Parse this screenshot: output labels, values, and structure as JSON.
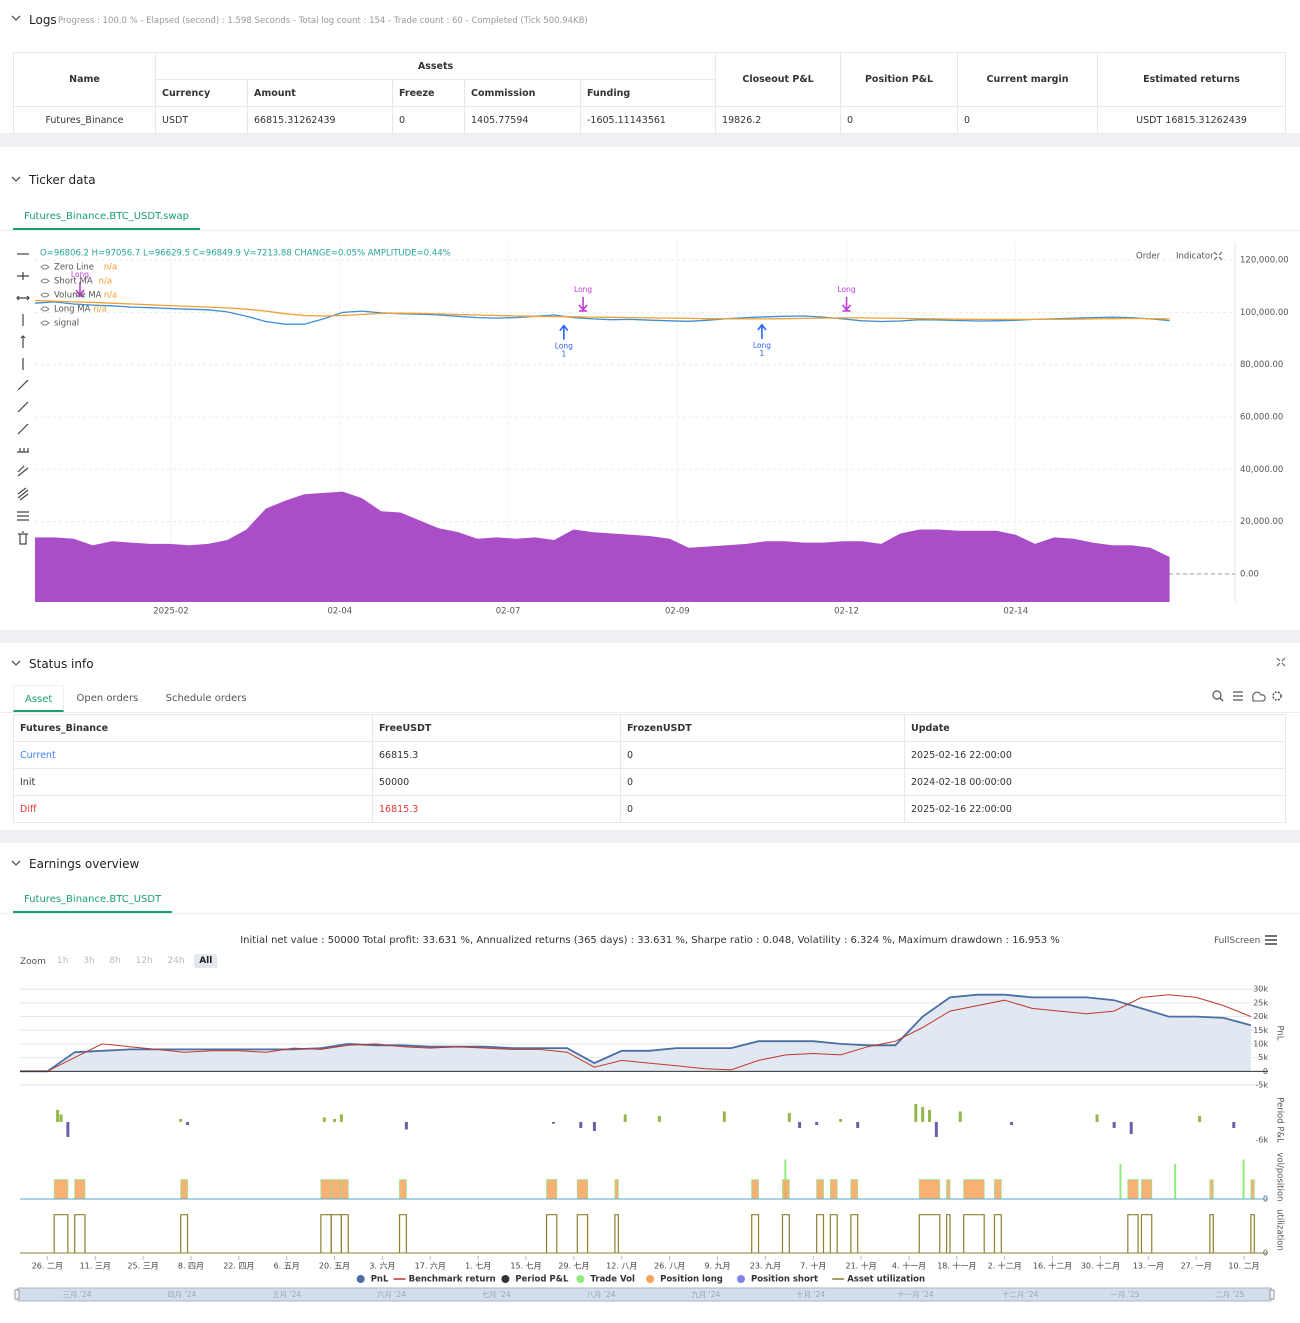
{
  "logs": {
    "title": "Logs",
    "progress": "Progress : 100.0 % - Elapsed (second) : 1.598 Seconds - Total log count : 154 - Trade count : 60 - Completed (Tick 500.94KB)",
    "table": {
      "headers": [
        "Name",
        "Assets",
        "Closeout P&L",
        "Position P&L",
        "Current margin",
        "Estimated returns"
      ],
      "subheaders": [
        "Currency",
        "Amount",
        "Freeze",
        "Commission",
        "Funding"
      ],
      "rows": [
        [
          "Futures_Binance",
          "USDT",
          66815.31262439,
          0,
          1405.77594,
          -1605.11143561,
          19826.2,
          0,
          0,
          "USDT 16815.31262439"
        ]
      ]
    }
  },
  "ticker": {
    "title": "Ticker data",
    "tab": "Futures_Binance.BTC_USDT.swap",
    "ohlc": "O=96806.2 H=97056.7 L=96629.5 C=96849.9 V=7213.88 CHANGE=0.05% AMPLITUDE=0.44%",
    "buttons": [
      "Order",
      "Indicator"
    ]
  },
  "status": {
    "title": "Status info",
    "tabs": [
      "Asset",
      "Open orders",
      "Schedule orders"
    ],
    "table": {
      "headers": [
        "Futures_Binance",
        "FreeUSDT",
        "FrozenUSDT",
        "Update"
      ],
      "rows": [
        [
          "Current",
          66815.3,
          0,
          "2025-02-16 22:00:00"
        ],
        [
          "Init",
          50000,
          0,
          "2024-02-18 00:00:00"
        ],
        [
          "Diff",
          16815.3,
          0,
          "2025-02-16 22:00:00"
        ]
      ]
    }
  },
  "earnings": {
    "title": "Earnings overview",
    "tab": "Futures_Binance.BTC_USDT",
    "zoom_label": "Zoom",
    "zoom": [
      "1h",
      "3h",
      "8h",
      "12h",
      "24h",
      "All"
    ],
    "fullscreen": "FullScreen",
    "navigator": [
      "三月 '24",
      "四月 '24",
      "五月 '24",
      "六月 '24",
      "七月 '24",
      "八月 '24",
      "九月 '24",
      "十月 '24",
      "十一月 '24",
      "十二月 '24",
      "一月 '25",
      "二月 '25"
    ]
  },
  "chart_data": [
    {
      "type": "line",
      "xlim": [
        0,
        62.4
      ],
      "xticks": [
        {
          "value": 7.07,
          "label": "2025-02"
        },
        {
          "value": 15.85,
          "label": "02-04"
        },
        {
          "value": 24.6,
          "label": "02-07"
        },
        {
          "value": 33.4,
          "label": "02-09"
        },
        {
          "value": 42.2,
          "label": "02-12"
        },
        {
          "value": 51,
          "label": "02-14"
        }
      ],
      "ylim": [
        -10700,
        126900
      ],
      "yticks": [
        {
          "value": 0,
          "label": "0.00"
        },
        {
          "value": 20000,
          "label": "20,000.00"
        },
        {
          "value": 40000,
          "label": "40,000.00"
        },
        {
          "value": 60000,
          "label": "60,000.00"
        },
        {
          "value": 80000,
          "label": "80,000.00"
        },
        {
          "value": 100000,
          "label": "100,000.00"
        },
        {
          "value": 120000,
          "label": "120,000.00"
        }
      ],
      "grid": true,
      "series": [
        {
          "name": "Zero Line",
          "status": "n/a",
          "color": "#9e9e9e",
          "level": 0
        },
        {
          "name": "Short MA",
          "status": "n/a",
          "color": "#3d8fd6",
          "values": [
            103500,
            104000,
            103200,
            102800,
            102500,
            102000,
            101800,
            101500,
            101200,
            101000,
            100200,
            98500,
            96500,
            95500,
            95500,
            97500,
            100000,
            100500,
            99800,
            99500,
            99300,
            99000,
            98500,
            98000,
            97800,
            98000,
            98500,
            99000,
            98000,
            97500,
            97200,
            97300,
            97000,
            96800,
            96600,
            97000,
            97600,
            98000,
            98300,
            98500,
            98600,
            98200,
            97500,
            96800,
            96500,
            96700,
            97200,
            97100,
            96900,
            96700,
            96800,
            97000,
            97300,
            97500,
            97800,
            98000,
            98200,
            98000,
            97500,
            96850
          ]
        },
        {
          "name": "Volume MA",
          "status": "n/a",
          "color": "#a445c4",
          "fill": true,
          "values": [
            14000,
            14000,
            13500,
            11000,
            12500,
            12000,
            11500,
            11500,
            11000,
            11500,
            13000,
            17000,
            25000,
            28000,
            30500,
            31000,
            31500,
            29000,
            24000,
            23500,
            20500,
            17500,
            16000,
            13500,
            14000,
            13500,
            14000,
            13000,
            17000,
            16000,
            15500,
            15000,
            14500,
            13500,
            10000,
            10500,
            11000,
            11500,
            12500,
            12500,
            12000,
            12000,
            12500,
            12500,
            11500,
            15500,
            17000,
            17000,
            16500,
            16500,
            16500,
            15000,
            11500,
            14000,
            13500,
            12000,
            11000,
            11000,
            10000,
            6500
          ]
        },
        {
          "name": "Long MA",
          "status": "n/a",
          "color": "#f0a030",
          "values": [
            104500,
            104300,
            104000,
            103800,
            103500,
            103200,
            102900,
            102600,
            102300,
            102000,
            101700,
            101200,
            100500,
            99500,
            98800,
            98600,
            98800,
            99200,
            99600,
            99700,
            99600,
            99400,
            99200,
            99000,
            98800,
            98600,
            98500,
            98400,
            98300,
            98200,
            98100,
            98000,
            97900,
            97800,
            97700,
            97600,
            97500,
            97500,
            97500,
            97600,
            97700,
            97800,
            97900,
            97900,
            97800,
            97700,
            97600,
            97500,
            97400,
            97300,
            97300,
            97300,
            97300,
            97300,
            97400,
            97500,
            97600,
            97700,
            97600,
            97500
          ]
        },
        {
          "name": "signal",
          "color": "#c03fd6"
        }
      ],
      "signals": [
        {
          "x": 2.34,
          "label": "Long",
          "dir": "down"
        },
        {
          "x": 28.5,
          "label": "Long",
          "dir": "down"
        },
        {
          "x": 27.5,
          "label": "Long",
          "dir": "up",
          "qty": 1
        },
        {
          "x": 37.8,
          "label": "Long",
          "dir": "up",
          "qty": 1
        },
        {
          "x": 42.2,
          "label": "Long",
          "dir": "down"
        }
      ]
    },
    {
      "type": "line",
      "subtitle": "Initial net value : 50000 Total profit: 33.631 %, Annualized returns (365 days) : 33.631 %, Sharpe ratio : 0.048, Volatility : 6.324 %, Maximum drawdown : 16.953 %",
      "xlim": [
        0,
        365
      ],
      "xticks": [
        {
          "value": 8,
          "label": "26. 二月"
        },
        {
          "value": 22,
          "label": "11. 三月"
        },
        {
          "value": 36,
          "label": "25. 三月"
        },
        {
          "value": 50,
          "label": "8. 四月"
        },
        {
          "value": 64,
          "label": "22. 四月"
        },
        {
          "value": 78,
          "label": "6. 五月"
        },
        {
          "value": 92,
          "label": "20. 五月"
        },
        {
          "value": 106,
          "label": "3. 六月"
        },
        {
          "value": 120,
          "label": "17. 六月"
        },
        {
          "value": 134,
          "label": "1. 七月"
        },
        {
          "value": 148,
          "label": "15. 七月"
        },
        {
          "value": 162,
          "label": "29. 七月"
        },
        {
          "value": 176,
          "label": "12. 八月"
        },
        {
          "value": 190,
          "label": "26. 八月"
        },
        {
          "value": 204,
          "label": "9. 九月"
        },
        {
          "value": 218,
          "label": "23. 九月"
        },
        {
          "value": 232,
          "label": "7. 十月"
        },
        {
          "value": 246,
          "label": "21. 十月"
        },
        {
          "value": 260,
          "label": "4. 十一月"
        },
        {
          "value": 274,
          "label": "18. 十一月"
        },
        {
          "value": 288,
          "label": "2. 十二月"
        },
        {
          "value": 302,
          "label": "16. 十二月"
        },
        {
          "value": 316,
          "label": "30. 十二月"
        },
        {
          "value": 330,
          "label": "13. 一月"
        },
        {
          "value": 344,
          "label": "27. 一月"
        },
        {
          "value": 358,
          "label": "10. 二月"
        }
      ],
      "panels": [
        {
          "label": "PnL",
          "ylim": [
            -5000,
            33000
          ],
          "yticks": [
            {
              "value": 30000,
              "label": "30k"
            },
            {
              "value": 25000,
              "label": "25k"
            },
            {
              "value": 20000,
              "label": "20k"
            },
            {
              "value": 15000,
              "label": "15k"
            },
            {
              "value": 10000,
              "label": "10k"
            },
            {
              "value": 5000,
              "label": "5k"
            },
            0,
            {
              "value": -5000,
              "label": "-5k"
            }
          ]
        },
        {
          "label": "Period P&L",
          "ylim": [
            -7000,
            8300
          ],
          "yticks": [
            {
              "value": -6000,
              "label": "-6k"
            }
          ]
        },
        {
          "label": "vol/position",
          "ylim": [
            0,
            50
          ],
          "yticks": [
            0
          ]
        },
        {
          "label": "utilization",
          "ylim": [
            0,
            1.2
          ],
          "yticks": [
            0
          ]
        }
      ],
      "series": [
        {
          "name": "PnL",
          "color": "#4a6fa5",
          "panel": 0,
          "fill": true,
          "x": [
            0,
            8,
            16,
            24,
            32,
            40,
            48,
            56,
            64,
            72,
            80,
            88,
            96,
            104,
            112,
            120,
            128,
            136,
            144,
            152,
            160,
            168,
            176,
            184,
            192,
            200,
            208,
            216,
            224,
            232,
            240,
            248,
            256,
            264,
            272,
            280,
            288,
            296,
            304,
            312,
            320,
            328,
            336,
            344,
            352,
            360
          ],
          "values": [
            0,
            0,
            7000,
            7500,
            8000,
            8000,
            8000,
            8000,
            8000,
            8000,
            8000,
            8500,
            10000,
            9500,
            9500,
            9000,
            9000,
            9000,
            8500,
            8500,
            8500,
            3000,
            7500,
            7500,
            8500,
            8500,
            8500,
            11000,
            11000,
            11000,
            10000,
            9500,
            9500,
            20000,
            27000,
            28000,
            28000,
            27000,
            27000,
            27000,
            26000,
            23000,
            20000,
            20000,
            19500,
            16815
          ]
        },
        {
          "name": "Benchmark return",
          "color": "#c0392b",
          "panel": 0,
          "marker": "line",
          "x": [
            0,
            8,
            16,
            24,
            32,
            40,
            48,
            56,
            64,
            72,
            80,
            88,
            96,
            104,
            112,
            120,
            128,
            136,
            144,
            152,
            160,
            168,
            176,
            184,
            192,
            200,
            208,
            216,
            224,
            232,
            240,
            248,
            256,
            264,
            272,
            280,
            288,
            296,
            304,
            312,
            320,
            328,
            336,
            344,
            352,
            360
          ],
          "values": [
            0,
            0,
            5000,
            10000,
            9000,
            8000,
            7000,
            7500,
            7500,
            7000,
            8500,
            8000,
            9500,
            10000,
            9000,
            8500,
            9000,
            8500,
            8000,
            8000,
            7000,
            1500,
            4000,
            3000,
            2000,
            1000,
            500,
            4000,
            6000,
            6500,
            6000,
            9000,
            11000,
            16000,
            22000,
            24000,
            26000,
            23000,
            22000,
            21000,
            22000,
            27000,
            28000,
            27000,
            24000,
            20000
          ]
        },
        {
          "name": "Period P&L",
          "color": "#333333",
          "panel": 1,
          "positive_color": "#94b84a",
          "negative_color": "#6c5fa8",
          "x": [
            11,
            12,
            14,
            47,
            49,
            89,
            92,
            94,
            113,
            156,
            164,
            168,
            177,
            187,
            206,
            225,
            228,
            233,
            240,
            245,
            262,
            264,
            266,
            268,
            275,
            290,
            315,
            320,
            325,
            345,
            355
          ],
          "values": [
            4000,
            2500,
            -5000,
            1000,
            -1000,
            1500,
            1000,
            2500,
            -2500,
            -600,
            -2000,
            -3000,
            2500,
            2000,
            3500,
            3000,
            -2000,
            -1000,
            1000,
            -2000,
            6000,
            5000,
            4000,
            -5000,
            3500,
            -1000,
            2500,
            -2000,
            -4000,
            2000,
            -2000
          ]
        },
        {
          "name": "Trade Vol",
          "color": "#90ed7d",
          "panel": 2,
          "x": [
            224,
            322,
            338,
            358
          ],
          "values": [
            45,
            40,
            40,
            45
          ]
        },
        {
          "name": "Position long",
          "color": "#f7a35c",
          "panel": 2,
          "x": [
            10,
            16,
            47,
            88,
            91,
            94,
            111,
            154,
            163,
            174,
            214,
            223,
            233,
            237,
            243,
            263,
            271,
            276,
            285,
            324,
            328,
            348,
            360
          ],
          "x_end": [
            14,
            19,
            49,
            91,
            94,
            96,
            113,
            157,
            166,
            175,
            216,
            225,
            235,
            239,
            245,
            269,
            272,
            282,
            287,
            327,
            331,
            349,
            361
          ],
          "values": [
            22,
            22,
            22,
            22,
            22,
            22,
            22,
            22,
            22,
            22,
            22,
            22,
            22,
            22,
            22,
            22,
            22,
            22,
            22,
            22,
            22,
            22,
            22
          ]
        },
        {
          "name": "Position short",
          "color": "#8085e9",
          "panel": 2
        },
        {
          "name": "Asset utilization",
          "color": "#8d8030",
          "panel": 3,
          "marker": "line",
          "x": [
            10,
            16,
            47,
            88,
            91,
            94,
            111,
            154,
            163,
            174,
            214,
            223,
            233,
            237,
            243,
            263,
            271,
            276,
            285,
            324,
            328,
            348,
            360
          ],
          "x_end": [
            14,
            19,
            49,
            91,
            94,
            96,
            113,
            157,
            166,
            175,
            216,
            225,
            235,
            239,
            245,
            269,
            272,
            282,
            287,
            327,
            331,
            349,
            361
          ],
          "values": [
            1,
            1,
            1,
            1,
            1,
            1,
            1,
            1,
            1,
            1,
            1,
            1,
            1,
            1,
            1,
            1,
            1,
            1,
            1,
            1,
            1,
            1,
            1
          ]
        }
      ]
    }
  ]
}
